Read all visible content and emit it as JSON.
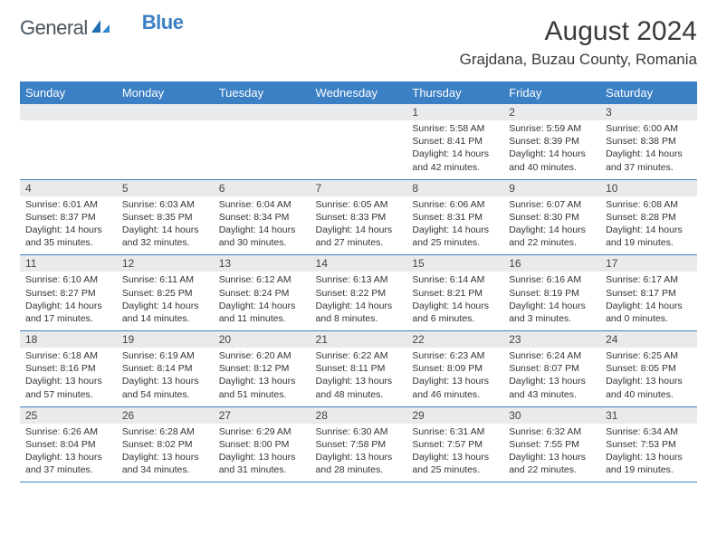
{
  "brand": {
    "name1": "General",
    "name2": "Blue"
  },
  "title": "August 2024",
  "location": "Grajdana, Buzau County, Romania",
  "colors": {
    "header_bg": "#3b7fc4",
    "header_text": "#ffffff",
    "daynum_bg": "#e9eaec",
    "border": "#3b7fc4",
    "text": "#333333"
  },
  "daynames": [
    "Sunday",
    "Monday",
    "Tuesday",
    "Wednesday",
    "Thursday",
    "Friday",
    "Saturday"
  ],
  "weeks": [
    [
      {
        "n": "",
        "sr": "",
        "ss": "",
        "dl": ""
      },
      {
        "n": "",
        "sr": "",
        "ss": "",
        "dl": ""
      },
      {
        "n": "",
        "sr": "",
        "ss": "",
        "dl": ""
      },
      {
        "n": "",
        "sr": "",
        "ss": "",
        "dl": ""
      },
      {
        "n": "1",
        "sr": "Sunrise: 5:58 AM",
        "ss": "Sunset: 8:41 PM",
        "dl": "Daylight: 14 hours and 42 minutes."
      },
      {
        "n": "2",
        "sr": "Sunrise: 5:59 AM",
        "ss": "Sunset: 8:39 PM",
        "dl": "Daylight: 14 hours and 40 minutes."
      },
      {
        "n": "3",
        "sr": "Sunrise: 6:00 AM",
        "ss": "Sunset: 8:38 PM",
        "dl": "Daylight: 14 hours and 37 minutes."
      }
    ],
    [
      {
        "n": "4",
        "sr": "Sunrise: 6:01 AM",
        "ss": "Sunset: 8:37 PM",
        "dl": "Daylight: 14 hours and 35 minutes."
      },
      {
        "n": "5",
        "sr": "Sunrise: 6:03 AM",
        "ss": "Sunset: 8:35 PM",
        "dl": "Daylight: 14 hours and 32 minutes."
      },
      {
        "n": "6",
        "sr": "Sunrise: 6:04 AM",
        "ss": "Sunset: 8:34 PM",
        "dl": "Daylight: 14 hours and 30 minutes."
      },
      {
        "n": "7",
        "sr": "Sunrise: 6:05 AM",
        "ss": "Sunset: 8:33 PM",
        "dl": "Daylight: 14 hours and 27 minutes."
      },
      {
        "n": "8",
        "sr": "Sunrise: 6:06 AM",
        "ss": "Sunset: 8:31 PM",
        "dl": "Daylight: 14 hours and 25 minutes."
      },
      {
        "n": "9",
        "sr": "Sunrise: 6:07 AM",
        "ss": "Sunset: 8:30 PM",
        "dl": "Daylight: 14 hours and 22 minutes."
      },
      {
        "n": "10",
        "sr": "Sunrise: 6:08 AM",
        "ss": "Sunset: 8:28 PM",
        "dl": "Daylight: 14 hours and 19 minutes."
      }
    ],
    [
      {
        "n": "11",
        "sr": "Sunrise: 6:10 AM",
        "ss": "Sunset: 8:27 PM",
        "dl": "Daylight: 14 hours and 17 minutes."
      },
      {
        "n": "12",
        "sr": "Sunrise: 6:11 AM",
        "ss": "Sunset: 8:25 PM",
        "dl": "Daylight: 14 hours and 14 minutes."
      },
      {
        "n": "13",
        "sr": "Sunrise: 6:12 AM",
        "ss": "Sunset: 8:24 PM",
        "dl": "Daylight: 14 hours and 11 minutes."
      },
      {
        "n": "14",
        "sr": "Sunrise: 6:13 AM",
        "ss": "Sunset: 8:22 PM",
        "dl": "Daylight: 14 hours and 8 minutes."
      },
      {
        "n": "15",
        "sr": "Sunrise: 6:14 AM",
        "ss": "Sunset: 8:21 PM",
        "dl": "Daylight: 14 hours and 6 minutes."
      },
      {
        "n": "16",
        "sr": "Sunrise: 6:16 AM",
        "ss": "Sunset: 8:19 PM",
        "dl": "Daylight: 14 hours and 3 minutes."
      },
      {
        "n": "17",
        "sr": "Sunrise: 6:17 AM",
        "ss": "Sunset: 8:17 PM",
        "dl": "Daylight: 14 hours and 0 minutes."
      }
    ],
    [
      {
        "n": "18",
        "sr": "Sunrise: 6:18 AM",
        "ss": "Sunset: 8:16 PM",
        "dl": "Daylight: 13 hours and 57 minutes."
      },
      {
        "n": "19",
        "sr": "Sunrise: 6:19 AM",
        "ss": "Sunset: 8:14 PM",
        "dl": "Daylight: 13 hours and 54 minutes."
      },
      {
        "n": "20",
        "sr": "Sunrise: 6:20 AM",
        "ss": "Sunset: 8:12 PM",
        "dl": "Daylight: 13 hours and 51 minutes."
      },
      {
        "n": "21",
        "sr": "Sunrise: 6:22 AM",
        "ss": "Sunset: 8:11 PM",
        "dl": "Daylight: 13 hours and 48 minutes."
      },
      {
        "n": "22",
        "sr": "Sunrise: 6:23 AM",
        "ss": "Sunset: 8:09 PM",
        "dl": "Daylight: 13 hours and 46 minutes."
      },
      {
        "n": "23",
        "sr": "Sunrise: 6:24 AM",
        "ss": "Sunset: 8:07 PM",
        "dl": "Daylight: 13 hours and 43 minutes."
      },
      {
        "n": "24",
        "sr": "Sunrise: 6:25 AM",
        "ss": "Sunset: 8:05 PM",
        "dl": "Daylight: 13 hours and 40 minutes."
      }
    ],
    [
      {
        "n": "25",
        "sr": "Sunrise: 6:26 AM",
        "ss": "Sunset: 8:04 PM",
        "dl": "Daylight: 13 hours and 37 minutes."
      },
      {
        "n": "26",
        "sr": "Sunrise: 6:28 AM",
        "ss": "Sunset: 8:02 PM",
        "dl": "Daylight: 13 hours and 34 minutes."
      },
      {
        "n": "27",
        "sr": "Sunrise: 6:29 AM",
        "ss": "Sunset: 8:00 PM",
        "dl": "Daylight: 13 hours and 31 minutes."
      },
      {
        "n": "28",
        "sr": "Sunrise: 6:30 AM",
        "ss": "Sunset: 7:58 PM",
        "dl": "Daylight: 13 hours and 28 minutes."
      },
      {
        "n": "29",
        "sr": "Sunrise: 6:31 AM",
        "ss": "Sunset: 7:57 PM",
        "dl": "Daylight: 13 hours and 25 minutes."
      },
      {
        "n": "30",
        "sr": "Sunrise: 6:32 AM",
        "ss": "Sunset: 7:55 PM",
        "dl": "Daylight: 13 hours and 22 minutes."
      },
      {
        "n": "31",
        "sr": "Sunrise: 6:34 AM",
        "ss": "Sunset: 7:53 PM",
        "dl": "Daylight: 13 hours and 19 minutes."
      }
    ]
  ]
}
